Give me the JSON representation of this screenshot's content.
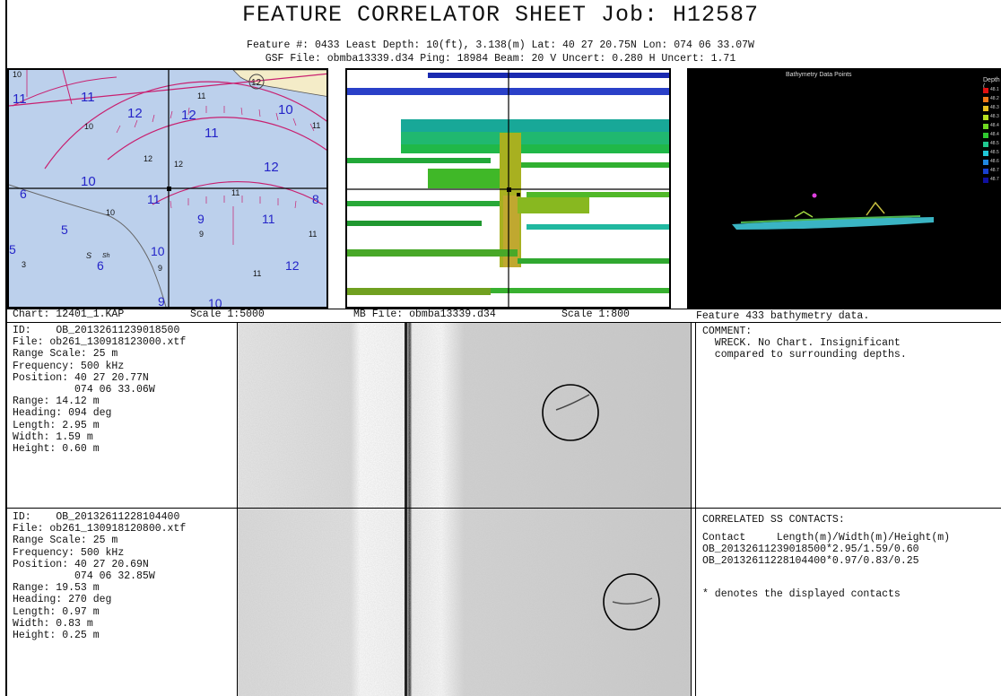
{
  "header": {
    "title": "FEATURE CORRELATOR SHEET  Job: H12587",
    "line1": "Feature #: 0433 Least Depth: 10(ft), 3.138(m) Lat: 40 27 20.75N Lon: 074 06 33.07W",
    "line2": "GSF File: obmba13339.d34 Ping: 18984 Beam: 20 V Uncert: 0.280 H Uncert: 1.71"
  },
  "chart_panel": {
    "caption_left": "Chart: 12401_1.KAP",
    "caption_right": "Scale 1:5000",
    "soundings": [
      "10",
      "11",
      "11",
      "12",
      "12",
      "10",
      "11",
      "11",
      "10",
      "12",
      "11",
      "12",
      "10",
      "6",
      "11",
      "8",
      "10",
      "9",
      "11",
      "5",
      "10",
      "9",
      "11",
      "5",
      "3",
      "6",
      "9",
      "S",
      "Sh",
      "12",
      "11",
      "12",
      "10",
      "9",
      "11"
    ],
    "circled": "12"
  },
  "mb_panel": {
    "caption_left": "MB File: obmba13339.d34",
    "caption_right": "Scale 1:800"
  },
  "bathy_panel": {
    "title": "Bathymetry Data Points",
    "legend_title": "Depth (",
    "legend_labels": [
      "48.1",
      "48.2",
      "48.3",
      "48.3",
      "48.4",
      "48.4",
      "48.5",
      "48.5",
      "48.6",
      "48.7",
      "48.7"
    ],
    "legend_colors": [
      "#e01010",
      "#f07818",
      "#e8c020",
      "#b8e020",
      "#70d820",
      "#30c830",
      "#20c890",
      "#20c8d8",
      "#2088e0",
      "#1840d0",
      "#1010a0"
    ],
    "caption": "Feature 433 bathymetry data."
  },
  "contact1": {
    "id_label": "ID:",
    "id": "OB_20132611239018500",
    "file": "File: ob261_130918123000.xtf",
    "range_scale": "Range Scale: 25 m",
    "frequency": "Frequency: 500 kHz",
    "position_lat": "Position: 40 27 20.77N",
    "position_lon": "          074 06 33.06W",
    "range": "Range: 14.12 m",
    "heading": "Heading: 094 deg",
    "length": "Length: 2.95 m",
    "width": "Width: 1.59 m",
    "height": "Height: 0.60 m"
  },
  "contact2": {
    "id_label": "ID:",
    "id": "OB_20132611228104400",
    "file": "File: ob261_130918120800.xtf",
    "range_scale": "Range Scale: 25 m",
    "frequency": "Frequency: 500 kHz",
    "position_lat": "Position: 40 27 20.69N",
    "position_lon": "          074 06 32.85W",
    "range": "Range: 19.53 m",
    "heading": "Heading: 270 deg",
    "length": "Length: 0.97 m",
    "width": "Width: 0.83 m",
    "height": "Height: 0.25 m"
  },
  "comment": {
    "label": "COMMENT:",
    "line1": "  WRECK. No Chart. Insignificant",
    "line2": "  compared to surrounding depths."
  },
  "correlated": {
    "label": "CORRELATED SS CONTACTS:",
    "header": "Contact     Length(m)/Width(m)/Height(m)",
    "row1": "OB_20132611239018500*2.95/1.59/0.60",
    "row2": "OB_20132611228104400*0.97/0.83/0.25",
    "note": "* denotes the displayed contacts"
  }
}
